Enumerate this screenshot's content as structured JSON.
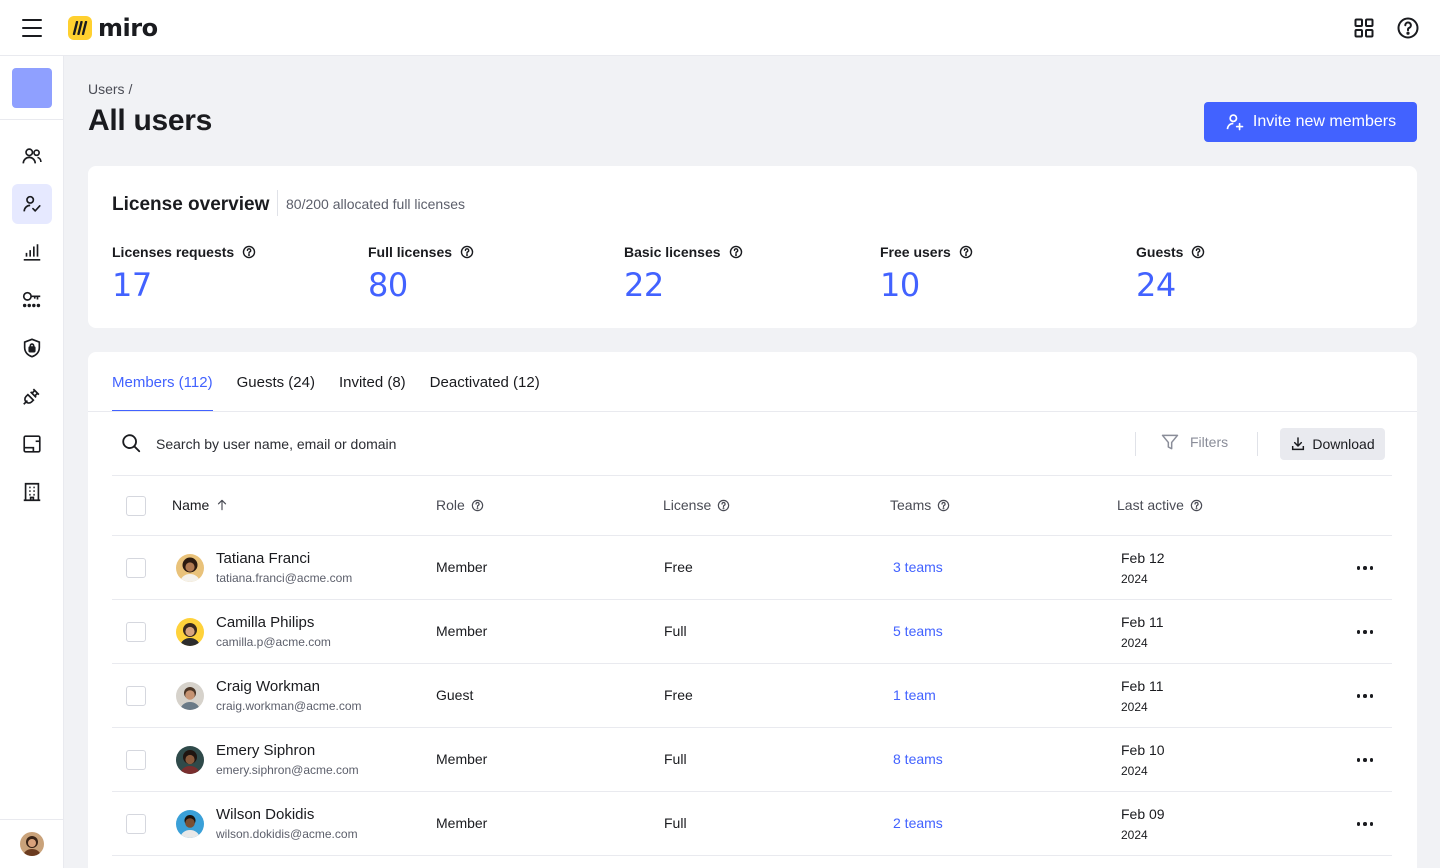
{
  "app": {
    "logo_text": "miro"
  },
  "colors": {
    "accent": "#4262ff",
    "logo_yellow": "#ffd02f"
  },
  "breadcrumb": "Users /",
  "page_title": "All users",
  "invite_button": "Invite new members",
  "license_overview": {
    "title": "License overview",
    "subtitle": "80/200 allocated full licenses",
    "stats": [
      {
        "label": "Licenses requests",
        "value": "17"
      },
      {
        "label": "Full licenses",
        "value": "80"
      },
      {
        "label": "Basic licenses",
        "value": "22"
      },
      {
        "label": "Free users",
        "value": "10"
      },
      {
        "label": "Guests",
        "value": "24"
      }
    ]
  },
  "tabs": [
    {
      "label": "Members (112)",
      "active": true
    },
    {
      "label": "Guests (24)",
      "active": false
    },
    {
      "label": "Invited (8)",
      "active": false
    },
    {
      "label": "Deactivated (12)",
      "active": false
    }
  ],
  "search": {
    "placeholder": "Search by user name, email or domain"
  },
  "filters_label": "Filters",
  "download_label": "Download",
  "columns": {
    "name": "Name",
    "role": "Role",
    "license": "License",
    "teams": "Teams",
    "last_active": "Last active"
  },
  "users": [
    {
      "name": "Tatiana Franci",
      "email": "tatiana.franci@acme.com",
      "role": "Member",
      "license": "Free",
      "teams": "3 teams",
      "date": "Feb 12",
      "year": "2024"
    },
    {
      "name": "Camilla Philips",
      "email": "camilla.p@acme.com",
      "role": "Member",
      "license": "Full",
      "teams": "5 teams",
      "date": "Feb 11",
      "year": "2024"
    },
    {
      "name": "Craig Workman",
      "email": "craig.workman@acme.com",
      "role": "Guest",
      "license": "Free",
      "teams": "1 team",
      "date": "Feb 11",
      "year": "2024"
    },
    {
      "name": "Emery Siphron",
      "email": "emery.siphron@acme.com",
      "role": "Member",
      "license": "Full",
      "teams": "8 teams",
      "date": "Feb 10",
      "year": "2024"
    },
    {
      "name": "Wilson Dokidis",
      "email": "wilson.dokidis@acme.com",
      "role": "Member",
      "license": "Full",
      "teams": "2 teams",
      "date": "Feb 09",
      "year": "2024"
    }
  ],
  "sidebar_icons": [
    "users-icon",
    "user-check-icon",
    "analytics-icon",
    "key-icon",
    "shield-icon",
    "plug-icon",
    "board-icon",
    "building-icon"
  ]
}
